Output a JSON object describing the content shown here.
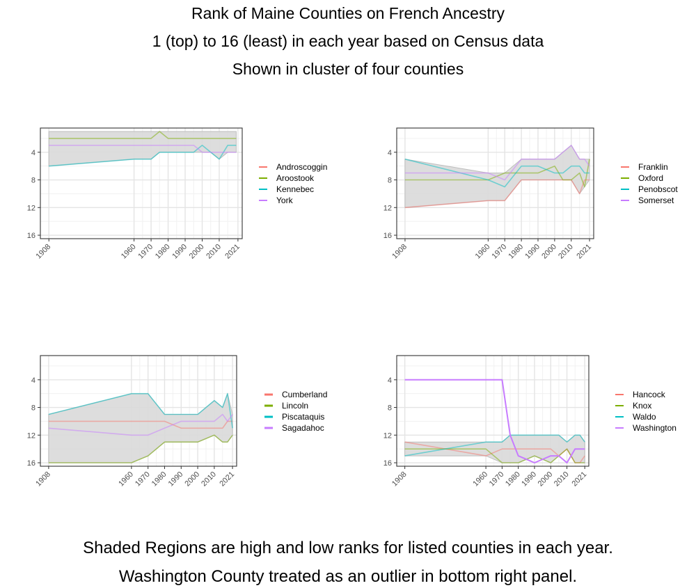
{
  "title": {
    "line1": "Rank of Maine Counties on French Ancestry",
    "line2": "1 (top) to 16 (least) in each year based on Census data",
    "line3": "Shown in cluster of four counties"
  },
  "footer": {
    "line1": "Shaded Regions are high and low ranks for listed counties in each year.",
    "line2": "Washington County treated as an outlier in bottom right panel."
  },
  "colors": {
    "red": "#F8766D",
    "green": "#7CAE00",
    "teal": "#00BFC4",
    "purple": "#C77CFF",
    "band": "#d9d9d9"
  },
  "chart_data": [
    {
      "type": "line",
      "panel": "top-left",
      "x_tick_labels": [
        "1908",
        "1960",
        "1970",
        "1980",
        "1990",
        "2000",
        "2010",
        "2021"
      ],
      "y_tick_labels": [
        "4",
        "8",
        "12",
        "16"
      ],
      "ylim": [
        16.5,
        0.5
      ],
      "y_reversed": true,
      "shaded_band": "min-max rank of listed counties",
      "years": [
        1910,
        1960,
        1970,
        1975,
        1980,
        1985,
        1990,
        1995,
        2000,
        2005,
        2010,
        2015,
        2020
      ],
      "series": [
        {
          "name": "Androscoggin",
          "color": "#F8766D",
          "values": [
            1,
            1,
            1,
            2,
            1,
            1,
            1,
            1,
            1,
            1,
            1,
            1,
            1
          ],
          "show_line": false
        },
        {
          "name": "Aroostook",
          "color": "#7CAE00",
          "values": [
            2,
            2,
            2,
            1,
            2,
            2,
            2,
            2,
            2,
            2,
            2,
            2,
            2
          ],
          "show_line": true
        },
        {
          "name": "Kennebec",
          "color": "#00BFC4",
          "values": [
            6,
            5,
            5,
            4,
            4,
            4,
            4,
            4,
            3,
            4,
            5,
            3,
            3
          ],
          "show_line": true
        },
        {
          "name": "York",
          "color": "#C77CFF",
          "values": [
            3,
            3,
            3,
            3,
            3,
            3,
            3,
            3,
            4,
            4,
            4,
            4,
            4
          ],
          "show_line": true
        }
      ]
    },
    {
      "type": "line",
      "panel": "top-right",
      "x_tick_labels": [
        "1908",
        "1960",
        "1970",
        "1980",
        "1990",
        "2000",
        "2010",
        "2021"
      ],
      "y_tick_labels": [
        "4",
        "8",
        "12",
        "16"
      ],
      "ylim": [
        16.5,
        0.5
      ],
      "y_reversed": true,
      "shaded_band": "min-max rank of listed counties",
      "years": [
        1910,
        1960,
        1970,
        1980,
        1990,
        2000,
        2005,
        2010,
        2015,
        2018,
        2021
      ],
      "series": [
        {
          "name": "Franklin",
          "color": "#F8766D",
          "values": [
            12,
            11,
            11,
            8,
            8,
            8,
            8,
            8,
            10,
            8,
            8
          ],
          "show_line": true
        },
        {
          "name": "Oxford",
          "color": "#7CAE00",
          "values": [
            8,
            8,
            7,
            7,
            7,
            6,
            8,
            8,
            7,
            9,
            5
          ],
          "show_line": true
        },
        {
          "name": "Penobscot",
          "color": "#00BFC4",
          "values": [
            5,
            8,
            9,
            6,
            6,
            7,
            7,
            6,
            6,
            7,
            7
          ],
          "show_line": true
        },
        {
          "name": "Somerset",
          "color": "#C77CFF",
          "values": [
            7,
            7,
            8,
            5,
            5,
            5,
            4,
            3,
            5,
            5,
            6
          ],
          "show_line": true
        }
      ]
    },
    {
      "type": "line",
      "panel": "bottom-left",
      "x_tick_labels": [
        "1908",
        "1960",
        "1970",
        "1980",
        "1990",
        "2000",
        "2010",
        "2021"
      ],
      "y_tick_labels": [
        "4",
        "8",
        "12",
        "16"
      ],
      "ylim": [
        16.5,
        0.5
      ],
      "y_reversed": true,
      "shaded_band": "min-max rank of listed counties",
      "years": [
        1910,
        1960,
        1970,
        1980,
        1990,
        2000,
        2010,
        2015,
        2018,
        2021
      ],
      "series": [
        {
          "name": "Cumberland",
          "color": "#F8766D",
          "values": [
            10,
            10,
            10,
            10,
            11,
            11,
            11,
            11,
            10,
            10
          ],
          "show_line": true
        },
        {
          "name": "Lincoln",
          "color": "#7CAE00",
          "values": [
            16,
            16,
            15,
            13,
            13,
            13,
            12,
            13,
            13,
            12
          ],
          "show_line": true
        },
        {
          "name": "Piscataquis",
          "color": "#00BFC4",
          "values": [
            9,
            6,
            6,
            9,
            9,
            9,
            7,
            8,
            6,
            11
          ],
          "show_line": true
        },
        {
          "name": "Sagadahoc",
          "color": "#C77CFF",
          "values": [
            11,
            12,
            12,
            11,
            10,
            10,
            10,
            9,
            10,
            9
          ],
          "show_line": true
        }
      ]
    },
    {
      "type": "line",
      "panel": "bottom-right",
      "x_tick_labels": [
        "1908",
        "1960",
        "1970",
        "1980",
        "1990",
        "2000",
        "2010",
        "2021"
      ],
      "y_tick_labels": [
        "4",
        "8",
        "12",
        "16"
      ],
      "ylim": [
        16.5,
        0.5
      ],
      "y_reversed": true,
      "shaded_band": "min-max rank of listed counties",
      "years": [
        1910,
        1960,
        1970,
        1975,
        1980,
        1990,
        2000,
        2005,
        2010,
        2015,
        2018,
        2021
      ],
      "series": [
        {
          "name": "Hancock",
          "color": "#F8766D",
          "values": [
            13,
            15,
            14,
            14,
            14,
            14,
            14,
            15,
            14,
            16,
            16,
            15
          ],
          "show_line": true
        },
        {
          "name": "Knox",
          "color": "#7CAE00",
          "values": [
            14,
            14,
            16,
            16,
            16,
            15,
            16,
            15,
            14,
            16,
            16,
            16
          ],
          "show_line": true
        },
        {
          "name": "Waldo",
          "color": "#00BFC4",
          "values": [
            15,
            13,
            13,
            12,
            12,
            12,
            12,
            12,
            13,
            12,
            12,
            13
          ],
          "show_line": true
        },
        {
          "name": "Washington",
          "color": "#C77CFF",
          "values": [
            4,
            4,
            4,
            12,
            15,
            16,
            15,
            15,
            16,
            14,
            14,
            14
          ],
          "show_line": true,
          "outlier": true
        }
      ]
    }
  ]
}
